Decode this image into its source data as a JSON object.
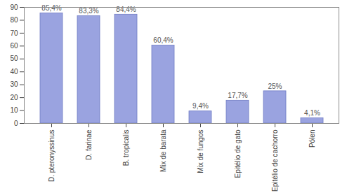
{
  "chart_data": {
    "type": "bar",
    "categories": [
      "D. pteronyssinus",
      "D. farinae",
      "B. tropicalis",
      "Mix de barata",
      "Mix de fungos",
      "Epitélio de gato",
      "Epitélio de cachorro",
      "Pólen"
    ],
    "values": [
      85.4,
      83.3,
      84.4,
      60.4,
      9.4,
      17.7,
      25,
      4.1
    ],
    "value_labels": [
      "85,4%",
      "83,3%",
      "84,4%",
      "60,4%",
      "9,4%",
      "17,7%",
      "25%",
      "4,1%"
    ],
    "data_labels": true,
    "color": "#9aa3e0",
    "ylim": [
      0,
      90
    ],
    "yticks": [
      0,
      10,
      20,
      30,
      40,
      50,
      60,
      70,
      80,
      90
    ],
    "grid": false
  }
}
